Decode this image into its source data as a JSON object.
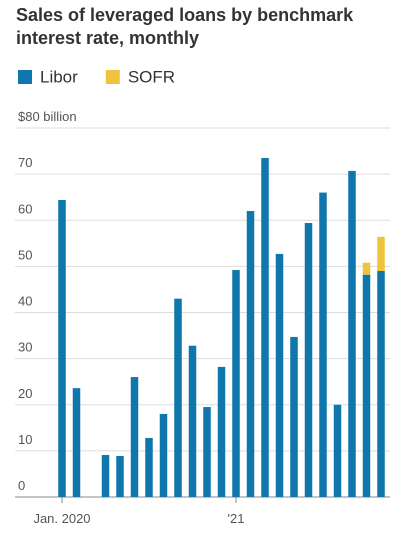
{
  "chart_data": {
    "type": "stacked_bar",
    "title": "Sales of leveraged loans by benchmark interest rate, monthly",
    "categories": [
      "Jan. 2020",
      null,
      null,
      null,
      null,
      null,
      null,
      null,
      null,
      null,
      null,
      null,
      "'21",
      null,
      null,
      null,
      null,
      null,
      null,
      null,
      null,
      null,
      null
    ],
    "series": [
      {
        "name": "Libor",
        "color": "#0f77ab",
        "values": [
          64.4,
          23.6,
          0,
          9.1,
          8.9,
          26,
          12.8,
          18,
          43,
          32.8,
          19.5,
          28.2,
          49.2,
          62,
          73.5,
          52.7,
          34.7,
          59.4,
          66,
          20,
          70.7,
          48.2,
          49
        ]
      },
      {
        "name": "SOFR",
        "color": "#efc43c",
        "values": [
          0,
          0,
          0,
          0,
          0,
          0,
          0,
          0,
          0,
          0,
          0,
          0,
          0,
          0,
          0,
          0,
          0,
          0,
          0,
          0,
          0,
          2.6,
          7.4
        ]
      }
    ],
    "ylim": [
      0,
      80
    ],
    "yticks": [
      0,
      10,
      20,
      30,
      40,
      50,
      60,
      70,
      {
        "value": 80,
        "label": "$80 billion"
      }
    ],
    "grid": true
  }
}
